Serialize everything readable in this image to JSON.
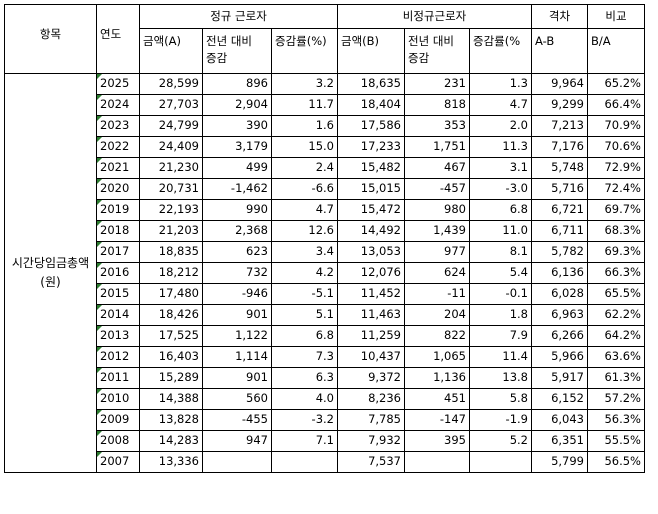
{
  "header": {
    "item": "항목",
    "year": "연도",
    "regular": "정규 근로자",
    "nonregular": "비정규근로자",
    "gap": "격차",
    "ratio": "비교",
    "amount_a": "금액(A)",
    "yoy_line1": "전년 대비",
    "yoy_line2": "증감",
    "rate": "증감률(%)",
    "amount_b": "금액(B)",
    "yoy2_line1": "전년 대비",
    "yoy2_line2": "증감",
    "rate2": "증감률(%",
    "gap_formula": "A-B",
    "ratio_formula": "B/A"
  },
  "item_label": "시간당임금총액 (원)",
  "rows": [
    [
      "2025",
      "28,599",
      "896",
      "3.2",
      "18,635",
      "231",
      "1.3",
      "9,964",
      "65.2%"
    ],
    [
      "2024",
      "27,703",
      "2,904",
      "11.7",
      "18,404",
      "818",
      "4.7",
      "9,299",
      "66.4%"
    ],
    [
      "2023",
      "24,799",
      "390",
      "1.6",
      "17,586",
      "353",
      "2.0",
      "7,213",
      "70.9%"
    ],
    [
      "2022",
      "24,409",
      "3,179",
      "15.0",
      "17,233",
      "1,751",
      "11.3",
      "7,176",
      "70.6%"
    ],
    [
      "2021",
      "21,230",
      "499",
      "2.4",
      "15,482",
      "467",
      "3.1",
      "5,748",
      "72.9%"
    ],
    [
      "2020",
      "20,731",
      "-1,462",
      "-6.6",
      "15,015",
      "-457",
      "-3.0",
      "5,716",
      "72.4%"
    ],
    [
      "2019",
      "22,193",
      "990",
      "4.7",
      "15,472",
      "980",
      "6.8",
      "6,721",
      "69.7%"
    ],
    [
      "2018",
      "21,203",
      "2,368",
      "12.6",
      "14,492",
      "1,439",
      "11.0",
      "6,711",
      "68.3%"
    ],
    [
      "2017",
      "18,835",
      "623",
      "3.4",
      "13,053",
      "977",
      "8.1",
      "5,782",
      "69.3%"
    ],
    [
      "2016",
      "18,212",
      "732",
      "4.2",
      "12,076",
      "624",
      "5.4",
      "6,136",
      "66.3%"
    ],
    [
      "2015",
      "17,480",
      "-946",
      "-5.1",
      "11,452",
      "-11",
      "-0.1",
      "6,028",
      "65.5%"
    ],
    [
      "2014",
      "18,426",
      "901",
      "5.1",
      "11,463",
      "204",
      "1.8",
      "6,963",
      "62.2%"
    ],
    [
      "2013",
      "17,525",
      "1,122",
      "6.8",
      "11,259",
      "822",
      "7.9",
      "6,266",
      "64.2%"
    ],
    [
      "2012",
      "16,403",
      "1,114",
      "7.3",
      "10,437",
      "1,065",
      "11.4",
      "5,966",
      "63.6%"
    ],
    [
      "2011",
      "15,289",
      "901",
      "6.3",
      "9,372",
      "1,136",
      "13.8",
      "5,917",
      "61.3%"
    ],
    [
      "2010",
      "14,388",
      "560",
      "4.0",
      "8,236",
      "451",
      "5.8",
      "6,152",
      "57.2%"
    ],
    [
      "2009",
      "13,828",
      "-455",
      "-3.2",
      "7,785",
      "-147",
      "-1.9",
      "6,043",
      "56.3%"
    ],
    [
      "2008",
      "14,283",
      "947",
      "7.1",
      "7,932",
      "395",
      "5.2",
      "6,351",
      "55.5%"
    ],
    [
      "2007",
      "13,336",
      "",
      "",
      "7,537",
      "",
      "",
      "5,799",
      "56.5%"
    ]
  ]
}
